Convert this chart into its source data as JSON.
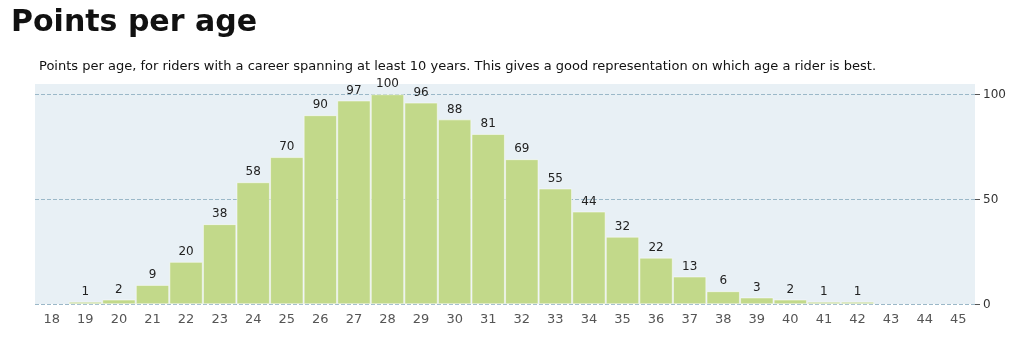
{
  "chart_data": {
    "type": "bar",
    "title": "Points per age",
    "subtitle": "Points per age, for riders with a career spanning at least 10 years. This gives a good representation on which age a rider is best.",
    "categories": [
      "18",
      "19",
      "20",
      "21",
      "22",
      "23",
      "24",
      "25",
      "26",
      "27",
      "28",
      "29",
      "30",
      "31",
      "32",
      "33",
      "34",
      "35",
      "36",
      "37",
      "38",
      "39",
      "40",
      "41",
      "42",
      "43",
      "44",
      "45"
    ],
    "values": [
      null,
      1,
      2,
      9,
      20,
      38,
      58,
      70,
      90,
      97,
      100,
      96,
      88,
      81,
      69,
      55,
      44,
      32,
      22,
      13,
      6,
      3,
      2,
      1,
      1,
      null,
      null,
      null
    ],
    "value_labels": [
      null,
      "1",
      "2",
      "9",
      "20",
      "38",
      "58",
      "70",
      "90",
      "97",
      "100",
      "96",
      "88",
      "81",
      "69",
      "55",
      "44",
      "32",
      "22",
      "13",
      "6",
      "3",
      "2",
      "1",
      "1",
      null,
      null,
      null
    ],
    "color": "#c2d98a",
    "ylim": [
      0,
      105
    ],
    "yticks": [
      0,
      50,
      100
    ],
    "grid": "y"
  }
}
